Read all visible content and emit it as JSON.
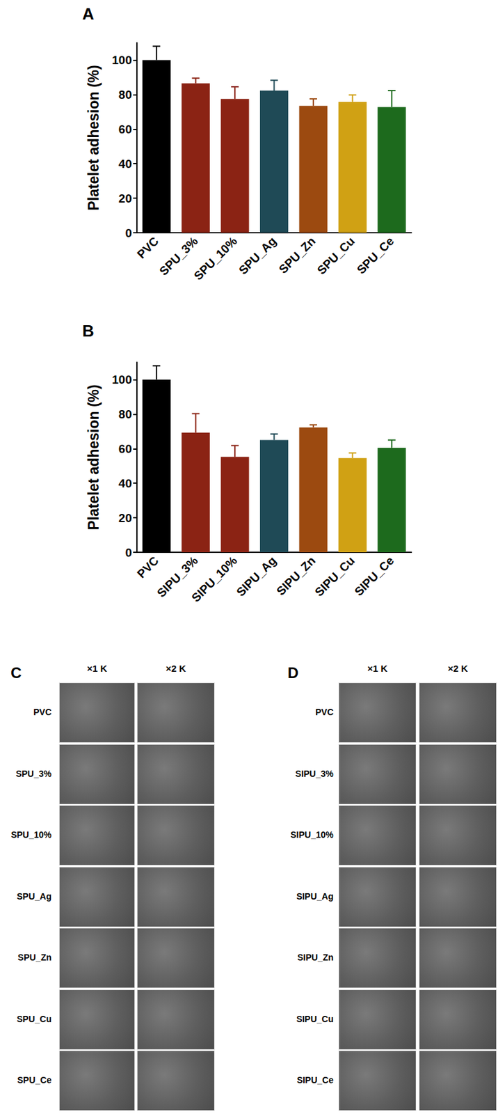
{
  "chart_data": [
    {
      "type": "bar",
      "title": "A",
      "y_label": "Platelet adhesion (%)",
      "categories": [
        "PVC",
        "SPU_3%",
        "SPU_10%",
        "SPU_Ag",
        "SPU_Zn",
        "SPU_Cu",
        "SPU_Ce"
      ],
      "values": [
        100,
        86.5,
        77.5,
        82.3,
        73.5,
        75.8,
        72.8
      ],
      "errors": [
        8,
        3,
        7,
        6,
        4,
        4,
        9.5
      ],
      "colors": [
        "#000000",
        "#8b2314",
        "#8b2314",
        "#1f4a56",
        "#9c4a10",
        "#d0a114",
        "#1d6a1d"
      ],
      "ylim": [
        0,
        110
      ],
      "yticks": [
        0,
        20,
        40,
        60,
        80,
        100
      ],
      "grid": false
    },
    {
      "type": "bar",
      "title": "B",
      "y_label": "Platelet adhesion (%)",
      "categories": [
        "PVC",
        "SIPU_3%",
        "SIPU_10%",
        "SIPU_Ag",
        "SIPU_Zn",
        "SIPU_Cu",
        "SIPU_Ce"
      ],
      "values": [
        100,
        69.3,
        55.3,
        65,
        72.3,
        54.5,
        60.5
      ],
      "errors": [
        8,
        11,
        6.5,
        3.5,
        1.5,
        3,
        4.5
      ],
      "colors": [
        "#000000",
        "#8b2314",
        "#8b2314",
        "#1f4a56",
        "#9c4a10",
        "#d0a114",
        "#1d6a1d"
      ],
      "ylim": [
        0,
        110
      ],
      "yticks": [
        0,
        20,
        40,
        60,
        80,
        100
      ],
      "grid": false
    }
  ],
  "image_panels": [
    {
      "label": "C",
      "columns": [
        "×1 K",
        "×2 K"
      ],
      "rows": [
        "PVC",
        "SPU_3%",
        "SPU_10%",
        "SPU_Ag",
        "SPU_Zn",
        "SPU_Cu",
        "SPU_Ce"
      ]
    },
    {
      "label": "D",
      "columns": [
        "×1 K",
        "×2 K"
      ],
      "rows": [
        "PVC",
        "SIPU_3%",
        "SIPU_10%",
        "SIPU_Ag",
        "SIPU_Zn",
        "SIPU_Cu",
        "SIPU_Ce"
      ]
    }
  ]
}
